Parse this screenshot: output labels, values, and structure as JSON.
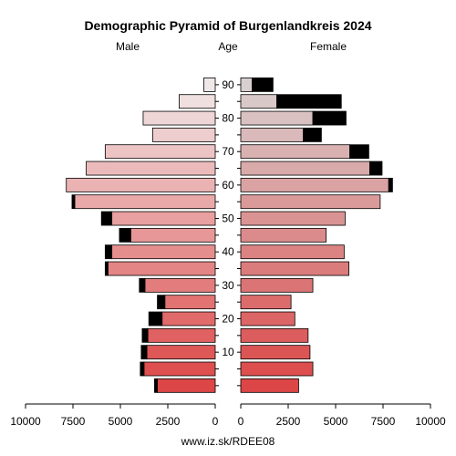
{
  "chart_data": {
    "type": "bar",
    "title": "Demographic Pyramid of Burgenlandkreis 2024",
    "left_label": "Male",
    "center_label": "Age",
    "right_label": "Female",
    "footer": "www.iz.sk/RDEE08",
    "age_groups": [
      "0-4",
      "5-9",
      "10-14",
      "15-19",
      "20-24",
      "25-29",
      "30-34",
      "35-39",
      "40-44",
      "45-49",
      "50-54",
      "55-59",
      "60-64",
      "65-69",
      "70-74",
      "75-79",
      "80-84",
      "85-89",
      "90+"
    ],
    "age_tick_labels": [
      "10",
      "20",
      "30",
      "40",
      "50",
      "60",
      "70",
      "80",
      "90"
    ],
    "male_axis_ticks": [
      "10000",
      "7500",
      "5000",
      "2500",
      "0"
    ],
    "female_axis_ticks": [
      "0",
      "2500",
      "5000",
      "7500",
      "10000"
    ],
    "xlim": [
      0,
      10000
    ],
    "male": {
      "values": [
        3200,
        3950,
        3900,
        3850,
        3500,
        3050,
        4000,
        5800,
        5800,
        5050,
        6000,
        7550,
        7850,
        6800,
        5800,
        3300,
        3800,
        1900,
        600
      ],
      "overflow": [
        3050,
        3750,
        3600,
        3550,
        2800,
        2650,
        3700,
        5650,
        5450,
        4450,
        5450,
        7400,
        7850,
        6800,
        5800,
        3300,
        3800,
        1900,
        600
      ]
    },
    "female": {
      "values": [
        3050,
        3800,
        3650,
        3550,
        2850,
        2650,
        3800,
        5700,
        5450,
        4500,
        5500,
        7350,
        8000,
        7450,
        6750,
        4250,
        5550,
        5300,
        1700
      ],
      "overflow": [
        3050,
        3800,
        3650,
        3550,
        2850,
        2650,
        3800,
        5700,
        5450,
        4500,
        5500,
        7350,
        7800,
        6800,
        5750,
        3300,
        3800,
        1900,
        600
      ]
    },
    "colors": {
      "excess": "#000000",
      "outline": "#000000"
    }
  }
}
